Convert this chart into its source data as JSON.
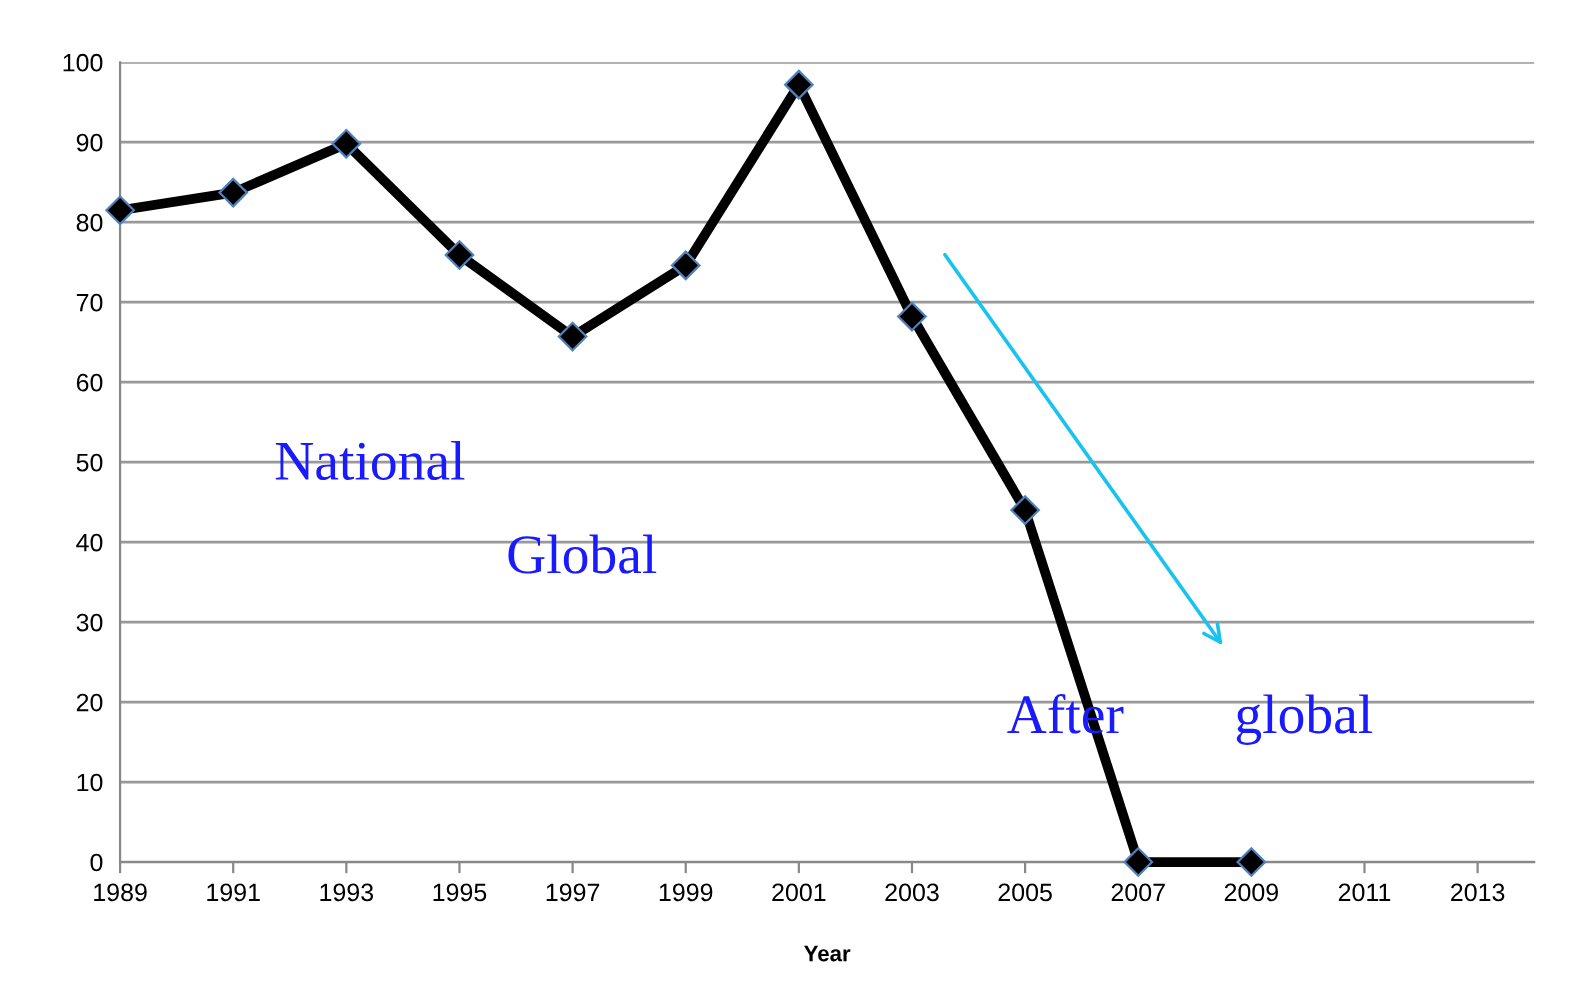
{
  "chart_data": {
    "type": "line",
    "xlabel": "Year",
    "x": [
      1989,
      1991,
      1993,
      1995,
      1997,
      1999,
      2001,
      2003,
      2005,
      2007,
      2009
    ],
    "series": [
      {
        "color": "#000000",
        "values": [
          81.5,
          83.7,
          89.8,
          75.9,
          65.7,
          74.6,
          97.2,
          68.2,
          44,
          0,
          0
        ]
      }
    ],
    "xlim": [
      1989,
      2014
    ],
    "xticks": [
      1989,
      1991,
      1993,
      1995,
      1997,
      1999,
      2001,
      2003,
      2005,
      2007,
      2009,
      2011,
      2013
    ],
    "ylim": [
      0,
      100
    ],
    "yticks": [
      0,
      10,
      20,
      30,
      40,
      50,
      60,
      70,
      80,
      90,
      100
    ],
    "grid": "y",
    "marker": "diamond",
    "line_style": "solid",
    "annotations": [
      "National",
      "Global",
      "After",
      "global"
    ]
  }
}
